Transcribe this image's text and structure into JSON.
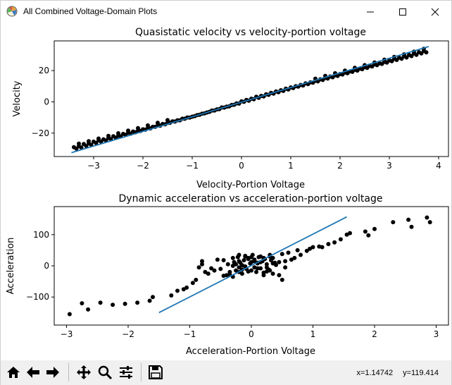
{
  "window": {
    "title": "All Combined Voltage-Domain Plots",
    "icon": "matplotlib-icon",
    "controls": [
      "minimize-icon",
      "maximize-icon",
      "close-icon"
    ]
  },
  "toolbar": {
    "buttons": [
      "home-icon",
      "back-icon",
      "forward-icon",
      "pan-icon",
      "zoom-icon",
      "configure-subplots-icon",
      "save-icon"
    ],
    "coords": {
      "x": "x=1.14742",
      "y": "y=119.414"
    }
  },
  "colors": {
    "points": "#000000",
    "fit_line": "#1f77b4"
  },
  "chart_data": [
    {
      "type": "scatter",
      "title": "Quasistatic velocity vs velocity-portion voltage",
      "xlabel": "Velocity-Portion Voltage",
      "ylabel": "Velocity",
      "xlim": [
        -3.8,
        4.2
      ],
      "ylim": [
        -35,
        39
      ],
      "xticks": [
        -3,
        -2,
        -1,
        0,
        1,
        2,
        3,
        4
      ],
      "yticks": [
        -20,
        0,
        20
      ],
      "xticklabels": [
        "−3",
        "−2",
        "−1",
        "0",
        "1",
        "2",
        "3",
        "4"
      ],
      "yticklabels": [
        "−20",
        "0",
        "20"
      ],
      "grid": false,
      "series": [
        {
          "kind": "points",
          "x": [
            -3.4,
            -3.3,
            -3.2,
            -3.1,
            -3.0,
            -2.9,
            -2.8,
            -2.7,
            -2.6,
            -2.5,
            -2.4,
            -2.3,
            -2.2,
            -2.1,
            -2.0,
            -1.9,
            -1.8,
            -1.7,
            -1.6,
            -1.5,
            -1.4,
            -1.3,
            -1.2,
            -1.1,
            -1.0,
            -0.9,
            -0.8,
            -0.7,
            -0.6,
            -0.5,
            -0.4,
            -0.3,
            -0.2,
            -0.1,
            0.0,
            0.1,
            0.2,
            0.3,
            0.4,
            0.5,
            0.6,
            0.7,
            0.8,
            0.9,
            1.0,
            1.1,
            1.2,
            1.3,
            1.4,
            1.5,
            1.6,
            1.7,
            1.8,
            1.9,
            2.0,
            2.1,
            2.2,
            2.3,
            2.4,
            2.5,
            2.6,
            2.7,
            2.8,
            2.9,
            3.0,
            3.1,
            3.2,
            3.3,
            3.4,
            3.5,
            3.6,
            3.7,
            -3.35,
            -3.25,
            -3.15,
            -3.05,
            -2.95,
            -2.85,
            -2.75,
            -2.65,
            -2.55,
            -2.45,
            -2.35,
            -2.25,
            -2.15,
            -2.05,
            -1.95,
            -1.85,
            -1.75,
            -1.65,
            -1.55,
            -1.45,
            -1.35,
            -1.25,
            -1.15,
            -1.05,
            -0.95,
            -0.85,
            -0.75,
            -0.65,
            -0.55,
            -0.45,
            -0.35,
            -0.25,
            -0.15,
            -0.05,
            0.05,
            0.15,
            0.25,
            0.35,
            0.45,
            0.55,
            0.65,
            0.75,
            0.85,
            0.95,
            1.05,
            1.15,
            1.25,
            1.35,
            1.45,
            1.55,
            1.65,
            1.75,
            1.85,
            1.95,
            2.05,
            2.15,
            2.25,
            2.35,
            2.45,
            2.55,
            2.65,
            2.75,
            2.85,
            2.95,
            3.05,
            3.15,
            3.25,
            3.35,
            3.45,
            3.55,
            3.65,
            3.75,
            -3.3,
            -3.1,
            -2.9,
            -2.7,
            -2.5,
            -2.3,
            -2.1,
            -1.9,
            -1.7,
            -1.5,
            1.5,
            1.7,
            1.9,
            2.1,
            2.3,
            2.5,
            2.7,
            2.9,
            3.1,
            3.3,
            3.5,
            3.7
          ],
          "y": [
            -29.0,
            -28.4,
            -27.0,
            -26.6,
            -25.5,
            -24.6,
            -24.0,
            -23.2,
            -22.0,
            -21.7,
            -20.5,
            -19.8,
            -19.0,
            -18.5,
            -17.6,
            -16.9,
            -16.0,
            -15.2,
            -14.2,
            -13.5,
            -12.5,
            -11.8,
            -10.8,
            -10.0,
            -9.5,
            -8.5,
            -7.6,
            -6.8,
            -5.6,
            -4.8,
            -3.6,
            -3.1,
            -2.0,
            -1.0,
            0.3,
            1.2,
            2.0,
            3.2,
            3.8,
            4.8,
            5.7,
            6.6,
            7.4,
            8.4,
            9.2,
            10.0,
            10.8,
            11.8,
            12.5,
            13.5,
            14.4,
            15.3,
            16.2,
            17.0,
            17.8,
            18.8,
            19.5,
            20.5,
            21.2,
            22.2,
            23.0,
            24.0,
            24.7,
            25.6,
            26.5,
            27.5,
            28.3,
            29.2,
            30.0,
            31.0,
            31.8,
            32.6,
            -30.0,
            -29.2,
            -28.3,
            -27.5,
            -26.4,
            -25.5,
            -24.7,
            -23.8,
            -23.0,
            -22.1,
            -21.1,
            -20.4,
            -19.5,
            -18.6,
            -17.8,
            -17.0,
            -16.0,
            -15.3,
            -14.4,
            -13.4,
            -12.6,
            -11.8,
            -10.8,
            -10.1,
            -9.2,
            -8.3,
            -7.4,
            -6.4,
            -5.6,
            -4.7,
            -3.7,
            -2.9,
            -1.9,
            -1.1,
            0.0,
            0.8,
            1.7,
            2.6,
            3.5,
            4.5,
            5.3,
            6.2,
            7.0,
            7.9,
            8.8,
            9.7,
            10.5,
            11.4,
            12.3,
            13.1,
            14.0,
            14.9,
            15.7,
            16.6,
            17.5,
            18.3,
            19.2,
            20.0,
            20.9,
            21.7,
            22.6,
            23.5,
            24.3,
            25.1,
            26.0,
            26.8,
            27.6,
            28.4,
            29.3,
            30.1,
            31.0,
            31.7,
            -26.8,
            -25.2,
            -23.5,
            -21.8,
            -20.1,
            -18.4,
            -16.8,
            -15.1,
            -13.4,
            -11.7,
            14.8,
            16.6,
            18.3,
            20.0,
            21.8,
            23.5,
            25.2,
            27.0,
            28.7,
            30.4,
            32.1,
            33.9
          ]
        },
        {
          "kind": "line",
          "x": [
            -3.45,
            3.8
          ],
          "y": [
            -32.5,
            35.4
          ]
        }
      ]
    },
    {
      "type": "scatter",
      "title": "Dynamic acceleration vs acceleration-portion voltage",
      "xlabel": "Acceleration-Portion Voltage",
      "ylabel": "Acceleration",
      "xlim": [
        -3.2,
        3.2
      ],
      "ylim": [
        -190,
        190
      ],
      "xticks": [
        -3,
        -2,
        -1,
        0,
        1,
        2,
        3
      ],
      "yticks": [
        -100,
        0,
        100
      ],
      "xticklabels": [
        "−3",
        "−2",
        "−1",
        "0",
        "1",
        "2",
        "3"
      ],
      "yticklabels": [
        "−100",
        "0",
        "100"
      ],
      "grid": false,
      "series": [
        {
          "kind": "points",
          "x": [
            -2.95,
            -2.75,
            -2.65,
            -2.45,
            -2.25,
            -2.05,
            -1.85,
            -1.65,
            -1.6,
            -1.3,
            -1.2,
            -1.1,
            -1.05,
            -0.95,
            -0.9,
            -0.85,
            -0.8,
            -0.75,
            -0.8,
            -0.7,
            -0.65,
            -0.6,
            -0.55,
            -0.5,
            -0.45,
            -0.4,
            -0.38,
            -0.35,
            -0.3,
            -0.3,
            -0.28,
            -0.25,
            -0.22,
            -0.2,
            -0.2,
            -0.18,
            -0.15,
            -0.12,
            -0.1,
            -0.08,
            -0.05,
            -0.02,
            0.0,
            0.02,
            0.05,
            0.08,
            0.1,
            0.12,
            0.15,
            0.18,
            0.2,
            0.22,
            0.25,
            0.28,
            0.3,
            0.32,
            0.35,
            0.38,
            0.4,
            -0.25,
            -0.15,
            -0.05,
            0.05,
            0.15,
            0.25,
            0.35,
            -0.2,
            -0.1,
            0.0,
            0.1,
            0.2,
            0.3,
            -0.3,
            -0.2,
            -0.1,
            0.0,
            0.1,
            0.2,
            0.3,
            -0.15,
            -0.05,
            0.05,
            0.15,
            0.25,
            -0.35,
            0.35,
            -0.45,
            0.45,
            0.5,
            0.55,
            0.6,
            0.65,
            0.7,
            0.75,
            0.8,
            0.9,
            0.95,
            1.0,
            1.1,
            1.15,
            1.25,
            1.35,
            1.45,
            1.55,
            1.6,
            1.85,
            1.9,
            2.0,
            2.3,
            2.55,
            2.6,
            2.85,
            2.9,
            0.45,
            0.5,
            0.55
          ],
          "y": [
            -155,
            -120,
            -140,
            -118,
            -125,
            -122,
            -118,
            -112,
            -100,
            -95,
            -80,
            -75,
            -70,
            -55,
            -45,
            -5,
            5,
            -20,
            15,
            -25,
            -8,
            -15,
            20,
            -10,
            18,
            -30,
            5,
            -20,
            25,
            -35,
            12,
            -15,
            28,
            35,
            -5,
            10,
            -25,
            18,
            32,
            -10,
            25,
            8,
            -15,
            35,
            20,
            -20,
            10,
            28,
            -8,
            15,
            -30,
            22,
            5,
            -12,
            30,
            18,
            -25,
            10,
            3,
            5,
            -12,
            22,
            -5,
            12,
            -18,
            8,
            -20,
            30,
            12,
            -8,
            25,
            -15,
            0,
            15,
            -2,
            28,
            8,
            -22,
            35,
            2,
            -18,
            15,
            30,
            -5,
            -28,
            25,
            -32,
            12,
            38,
            -5,
            42,
            20,
            25,
            50,
            35,
            48,
            55,
            60,
            62,
            60,
            70,
            75,
            85,
            100,
            105,
            110,
            98,
            118,
            140,
            148,
            125,
            155,
            140,
            -30,
            -45,
            15
          ]
        },
        {
          "kind": "line",
          "x": [
            -1.5,
            1.55
          ],
          "y": [
            -150,
            157
          ]
        }
      ]
    }
  ]
}
